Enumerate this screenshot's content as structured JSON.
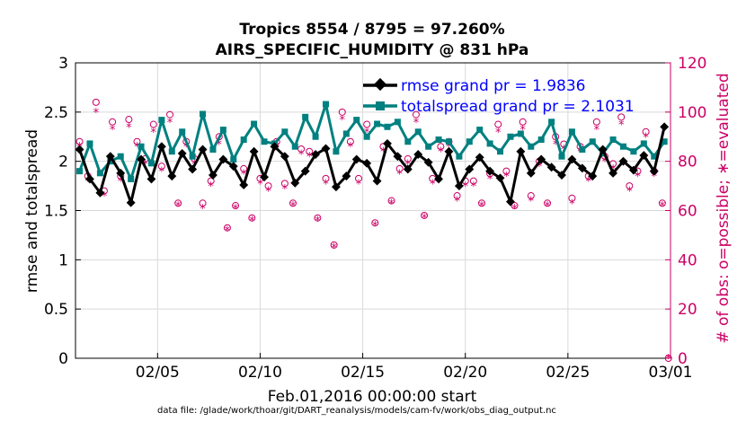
{
  "chart_data": {
    "type": "line",
    "title_line1": "Tropics 8554 / 8795 = 97.260%",
    "title_line2": "AIRS_SPECIFIC_HUMIDITY @ 831 hPa",
    "ylabel_left": "rmse and totalspread",
    "ylabel_right": "# of obs: o=possible; ∗=evaluated",
    "xlabel": "Feb.01,2016 00:00:00 start",
    "footnote": "data file: /glade/work/thoar/git/DART_reanalysis/models/cam-fv/work/obs_diag_output.nc",
    "xlim": [
      1,
      30
    ],
    "ylim_left": [
      0,
      3
    ],
    "ylim_right": [
      0,
      120
    ],
    "x_ticks": [
      5,
      10,
      15,
      20,
      25,
      30
    ],
    "x_tick_labels": [
      "02/05",
      "02/10",
      "02/15",
      "02/20",
      "02/25",
      "03/01"
    ],
    "yleft_ticks": [
      0,
      0.5,
      1,
      1.5,
      2,
      2.5,
      3
    ],
    "yleft_tick_labels": [
      "0",
      "0.5",
      "1",
      "1.5",
      "2",
      "2.5",
      "3"
    ],
    "yright_ticks": [
      0,
      20,
      40,
      60,
      80,
      100,
      120
    ],
    "yright_tick_labels": [
      "0",
      "20",
      "40",
      "60",
      "80",
      "100",
      "120"
    ],
    "colors": {
      "rmse": "#000000",
      "totalspread": "#008080",
      "obs": "#cc0066",
      "legend_text": "#0000ff",
      "grid": "#d9d9d9"
    },
    "legend": [
      {
        "name": "rmse",
        "label": "rmse grand pr = 1.9836"
      },
      {
        "name": "totalspread",
        "label": "totalspread grand pr = 2.1031"
      }
    ],
    "series": [
      {
        "name": "rmse",
        "axis": "left",
        "x": [
          1.2,
          1.7,
          2.2,
          2.7,
          3.2,
          3.7,
          4.2,
          4.7,
          5.2,
          5.7,
          6.2,
          6.7,
          7.2,
          7.7,
          8.2,
          8.7,
          9.2,
          9.7,
          10.2,
          10.7,
          11.2,
          11.7,
          12.2,
          12.7,
          13.2,
          13.7,
          14.2,
          14.7,
          15.2,
          15.7,
          16.2,
          16.7,
          17.2,
          17.7,
          18.2,
          18.7,
          19.2,
          19.7,
          20.2,
          20.7,
          21.2,
          21.7,
          22.2,
          22.7,
          23.2,
          23.7,
          24.2,
          24.7,
          25.2,
          25.7,
          26.2,
          26.7,
          27.2,
          27.7,
          28.2,
          28.7,
          29.2,
          29.7
        ],
        "values": [
          2.12,
          1.82,
          1.68,
          2.05,
          1.88,
          1.58,
          2.02,
          1.82,
          2.15,
          1.85,
          2.08,
          1.92,
          2.12,
          1.86,
          2.02,
          1.95,
          1.76,
          2.1,
          1.84,
          2.15,
          2.05,
          1.78,
          1.9,
          2.07,
          2.13,
          1.74,
          1.85,
          2.02,
          1.98,
          1.8,
          2.18,
          2.05,
          1.92,
          2.07,
          1.99,
          1.82,
          2.1,
          1.75,
          1.92,
          2.04,
          1.9,
          1.83,
          1.59,
          2.1,
          1.88,
          2.02,
          1.94,
          1.86,
          2.02,
          1.93,
          1.85,
          2.12,
          1.88,
          2.0,
          1.91,
          2.06,
          1.9,
          2.35
        ]
      },
      {
        "name": "totalspread",
        "axis": "left",
        "x": [
          1.2,
          1.7,
          2.2,
          2.7,
          3.2,
          3.7,
          4.2,
          4.7,
          5.2,
          5.7,
          6.2,
          6.7,
          7.2,
          7.7,
          8.2,
          8.7,
          9.2,
          9.7,
          10.2,
          10.7,
          11.2,
          11.7,
          12.2,
          12.7,
          13.2,
          13.7,
          14.2,
          14.7,
          15.2,
          15.7,
          16.2,
          16.7,
          17.2,
          17.7,
          18.2,
          18.7,
          19.2,
          19.7,
          20.2,
          20.7,
          21.2,
          21.7,
          22.2,
          22.7,
          23.2,
          23.7,
          24.2,
          24.7,
          25.2,
          25.7,
          26.2,
          26.7,
          27.2,
          27.7,
          28.2,
          28.7,
          29.2,
          29.7
        ],
        "values": [
          1.9,
          2.18,
          1.88,
          2.0,
          2.05,
          1.82,
          2.15,
          1.98,
          2.42,
          2.1,
          2.3,
          2.05,
          2.48,
          2.12,
          2.32,
          2.02,
          2.22,
          2.38,
          2.2,
          2.18,
          2.3,
          2.15,
          2.45,
          2.25,
          2.58,
          2.1,
          2.28,
          2.42,
          2.25,
          2.38,
          2.35,
          2.4,
          2.2,
          2.3,
          2.15,
          2.22,
          2.2,
          2.05,
          2.2,
          2.32,
          2.18,
          2.1,
          2.25,
          2.28,
          2.15,
          2.22,
          2.4,
          2.05,
          2.3,
          2.12,
          2.2,
          2.08,
          2.22,
          2.15,
          2.1,
          2.18,
          2.05,
          2.2
        ]
      },
      {
        "name": "obs_possible",
        "axis": "right",
        "marker": "circle",
        "x": [
          1.2,
          1.6,
          2.0,
          2.4,
          2.8,
          3.2,
          3.6,
          4.0,
          4.4,
          4.8,
          5.2,
          5.6,
          6.0,
          6.4,
          6.8,
          7.2,
          7.6,
          8.0,
          8.4,
          8.8,
          9.2,
          9.6,
          10.0,
          10.4,
          10.8,
          11.2,
          11.6,
          12.0,
          12.4,
          12.8,
          13.2,
          13.6,
          14.0,
          14.4,
          14.8,
          15.2,
          15.6,
          16.0,
          16.4,
          16.8,
          17.2,
          17.6,
          18.0,
          18.4,
          18.8,
          19.2,
          19.6,
          20.0,
          20.4,
          20.8,
          21.2,
          21.6,
          22.0,
          22.4,
          22.8,
          23.2,
          23.6,
          24.0,
          24.4,
          24.8,
          25.2,
          25.6,
          26.0,
          26.4,
          26.8,
          27.2,
          27.6,
          28.0,
          28.4,
          28.8,
          29.2,
          29.6,
          29.9
        ],
        "values": [
          88,
          74,
          104,
          68,
          96,
          74,
          97,
          88,
          81,
          95,
          78,
          99,
          63,
          88,
          81,
          63,
          72,
          90,
          53,
          62,
          77,
          57,
          73,
          70,
          88,
          71,
          63,
          85,
          84,
          57,
          73,
          46,
          100,
          88,
          73,
          95,
          55,
          86,
          64,
          77,
          81,
          99,
          58,
          73,
          86,
          88,
          66,
          72,
          72,
          63,
          75,
          95,
          76,
          62,
          96,
          66,
          80,
          63,
          90,
          87,
          65,
          86,
          74,
          96,
          82,
          79,
          98,
          70,
          76,
          92,
          76,
          63,
          0
        ]
      },
      {
        "name": "obs_evaluated",
        "axis": "right",
        "marker": "star",
        "x": [
          1.2,
          1.6,
          2.0,
          2.4,
          2.8,
          3.2,
          3.6,
          4.0,
          4.4,
          4.8,
          5.2,
          5.6,
          6.0,
          6.4,
          6.8,
          7.2,
          7.6,
          8.0,
          8.4,
          8.8,
          9.2,
          9.6,
          10.0,
          10.4,
          10.8,
          11.2,
          11.6,
          12.0,
          12.4,
          12.8,
          13.2,
          13.6,
          14.0,
          14.4,
          14.8,
          15.2,
          15.6,
          16.0,
          16.4,
          16.8,
          17.2,
          17.6,
          18.0,
          18.4,
          18.8,
          19.2,
          19.6,
          20.0,
          20.4,
          20.8,
          21.2,
          21.6,
          22.0,
          22.4,
          22.8,
          23.2,
          23.6,
          24.0,
          24.4,
          24.8,
          25.2,
          25.6,
          26.0,
          26.4,
          26.8,
          27.2,
          27.6,
          28.0,
          28.4,
          28.8,
          29.2,
          29.6,
          29.9
        ],
        "values": [
          86,
          72,
          100,
          66,
          93,
          72,
          94,
          86,
          79,
          92,
          76,
          96,
          62,
          86,
          79,
          61,
          70,
          87,
          52,
          61,
          75,
          56,
          71,
          68,
          86,
          69,
          62,
          83,
          82,
          56,
          71,
          45,
          97,
          86,
          71,
          92,
          54,
          84,
          63,
          75,
          79,
          96,
          57,
          71,
          84,
          86,
          64,
          70,
          70,
          62,
          73,
          92,
          74,
          61,
          93,
          64,
          78,
          62,
          87,
          85,
          63,
          84,
          72,
          93,
          80,
          77,
          95,
          68,
          74,
          90,
          74,
          62,
          0
        ]
      }
    ]
  }
}
